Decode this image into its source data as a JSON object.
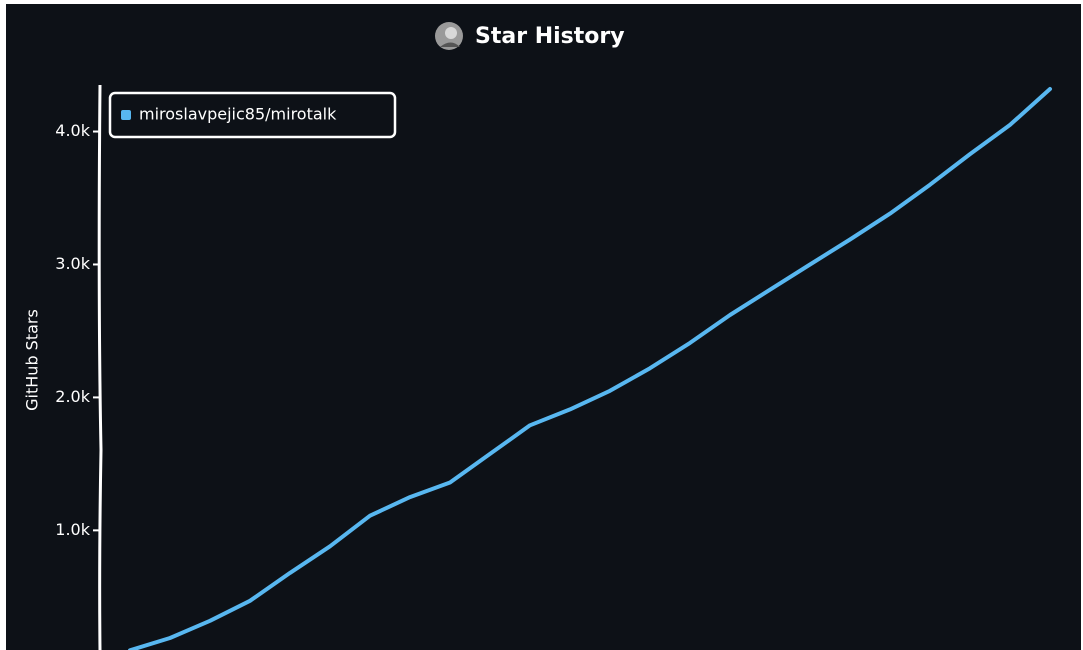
{
  "chart_data": {
    "type": "line",
    "title": "Star History",
    "y_label": "GitHub Stars",
    "categories": [
      null,
      null,
      null,
      null,
      null,
      null,
      null,
      null,
      null,
      null,
      null,
      null,
      null,
      null,
      null,
      null,
      null,
      null,
      null,
      null,
      null,
      null,
      null,
      null
    ],
    "series": [
      {
        "name": "miroslavpejic85/mirotalk",
        "color": "#58b7f0",
        "values": [
          98,
          190,
          320,
          470,
          680,
          880,
          1110,
          1250,
          1360,
          1575,
          1790,
          1910,
          2050,
          2220,
          2410,
          2620,
          2810,
          3000,
          3188,
          3383,
          3600,
          3830,
          4050,
          4320
        ]
      }
    ],
    "ylim": [
      100,
      4350
    ],
    "yticks": [
      {
        "value": 1000,
        "label": "1.0k"
      },
      {
        "value": 2000,
        "label": "2.0k"
      },
      {
        "value": 3000,
        "label": "3.0k"
      },
      {
        "value": 4000,
        "label": "4.0k"
      }
    ],
    "grid": false,
    "legend": "top-left"
  }
}
